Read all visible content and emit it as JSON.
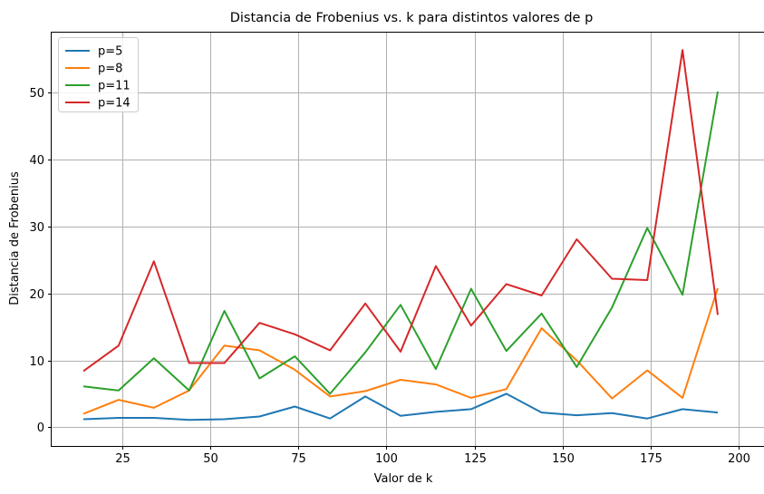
{
  "chart_data": {
    "type": "line",
    "title": "Distancia de Frobenius vs. k para distintos valores de p",
    "xlabel": "Valor de k",
    "ylabel": "Distancia de Frobenius",
    "xlim": [
      5,
      203
    ],
    "ylim": [
      -2.8,
      59
    ],
    "xticks": [
      25,
      50,
      75,
      100,
      125,
      150,
      175,
      200
    ],
    "yticks": [
      0,
      10,
      20,
      30,
      40,
      50
    ],
    "grid": true,
    "legend_position": "top-left",
    "x": [
      14,
      24,
      34,
      44,
      54,
      64,
      74,
      84,
      94,
      104,
      114,
      124,
      134,
      144,
      154,
      164,
      174,
      184,
      194
    ],
    "series": [
      {
        "name": "p=5",
        "color": "#1f77b4",
        "values": [
          1.2,
          1.4,
          1.4,
          1.1,
          1.2,
          1.6,
          3.1,
          1.3,
          4.6,
          1.7,
          2.3,
          2.7,
          5.0,
          2.2,
          1.8,
          2.1,
          1.3,
          2.7,
          2.2
        ]
      },
      {
        "name": "p=8",
        "color": "#ff7f0e",
        "values": [
          2.0,
          4.1,
          2.9,
          5.5,
          12.2,
          11.5,
          8.6,
          4.6,
          5.4,
          7.1,
          6.4,
          4.4,
          5.7,
          14.8,
          10.0,
          4.3,
          8.5,
          4.4,
          20.8
        ]
      },
      {
        "name": "p=11",
        "color": "#2ca02c",
        "values": [
          6.1,
          5.5,
          10.3,
          5.5,
          17.4,
          7.3,
          10.6,
          5.0,
          11.2,
          18.3,
          8.7,
          20.7,
          11.4,
          17.0,
          9.0,
          17.9,
          29.8,
          19.8,
          50.2
        ]
      },
      {
        "name": "p=14",
        "color": "#d62728",
        "values": [
          8.4,
          12.2,
          24.8,
          9.6,
          9.6,
          15.6,
          13.9,
          11.5,
          18.5,
          11.3,
          24.1,
          15.2,
          21.4,
          19.7,
          28.1,
          22.2,
          22.0,
          56.4,
          16.8
        ]
      }
    ]
  }
}
